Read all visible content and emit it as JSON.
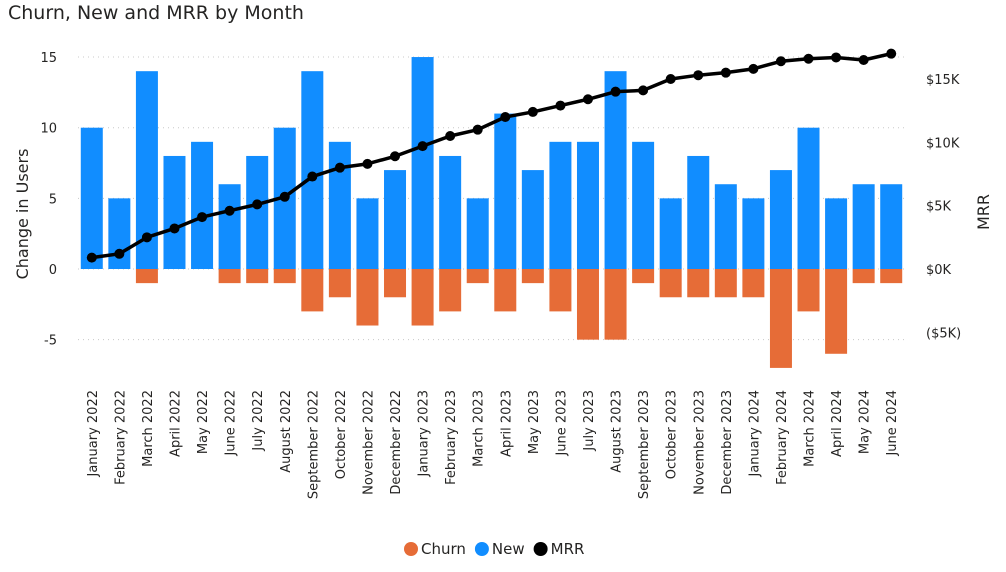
{
  "chart_data": {
    "type": "bar",
    "title": "Churn, New and MRR by Month",
    "ylabel": "Change in Users",
    "y2label": "MRR",
    "ylim": [
      -8,
      15.5
    ],
    "y2lim": [
      -7600,
      18000
    ],
    "yticks": [
      -5,
      0,
      5,
      10,
      15
    ],
    "y2ticks": [
      {
        "value": -5000,
        "label": "($5K)"
      },
      {
        "value": 0,
        "label": "$0K"
      },
      {
        "value": 5000,
        "label": "$5K"
      },
      {
        "value": 10000,
        "label": "$10K"
      },
      {
        "value": 15000,
        "label": "$15K"
      }
    ],
    "categories": [
      "January 2022",
      "February 2022",
      "March 2022",
      "April 2022",
      "May 2022",
      "June 2022",
      "July 2022",
      "August 2022",
      "September 2022",
      "October 2022",
      "November 2022",
      "December 2022",
      "January 2023",
      "February 2023",
      "March 2023",
      "April 2023",
      "May 2023",
      "June 2023",
      "July 2023",
      "August 2023",
      "September 2023",
      "October 2023",
      "November 2023",
      "December 2023",
      "January 2024",
      "February 2024",
      "March 2024",
      "April 2024",
      "May 2024",
      "June 2024"
    ],
    "series": [
      {
        "name": "Churn",
        "type": "bar",
        "color": "#E66C37",
        "values": [
          0,
          0,
          -1,
          0,
          0,
          -1,
          -1,
          -1,
          -3,
          -2,
          -4,
          -2,
          -4,
          -3,
          -1,
          -3,
          -1,
          -3,
          -5,
          -5,
          -1,
          -2,
          -2,
          -2,
          -2,
          -7,
          -3,
          -6,
          -1,
          -1
        ]
      },
      {
        "name": "New",
        "type": "bar",
        "color": "#118DFF",
        "values": [
          10,
          5,
          14,
          8,
          9,
          6,
          8,
          10,
          14,
          9,
          5,
          7,
          15,
          8,
          5,
          11,
          7,
          9,
          9,
          14,
          9,
          5,
          8,
          6,
          5,
          7,
          10,
          5,
          6,
          6
        ]
      },
      {
        "name": "MRR",
        "type": "line",
        "axis": "right",
        "color": "#000000",
        "values": [
          900,
          1200,
          2500,
          3200,
          4100,
          4600,
          5100,
          5700,
          7300,
          8000,
          8300,
          8900,
          9700,
          10500,
          11000,
          12000,
          12400,
          12900,
          13400,
          14000,
          14100,
          15000,
          15300,
          15500,
          15800,
          16400,
          16600,
          16700,
          16500,
          17000
        ]
      }
    ],
    "legend": {
      "position": "bottom-center",
      "items": [
        "Churn",
        "New",
        "MRR"
      ]
    }
  }
}
